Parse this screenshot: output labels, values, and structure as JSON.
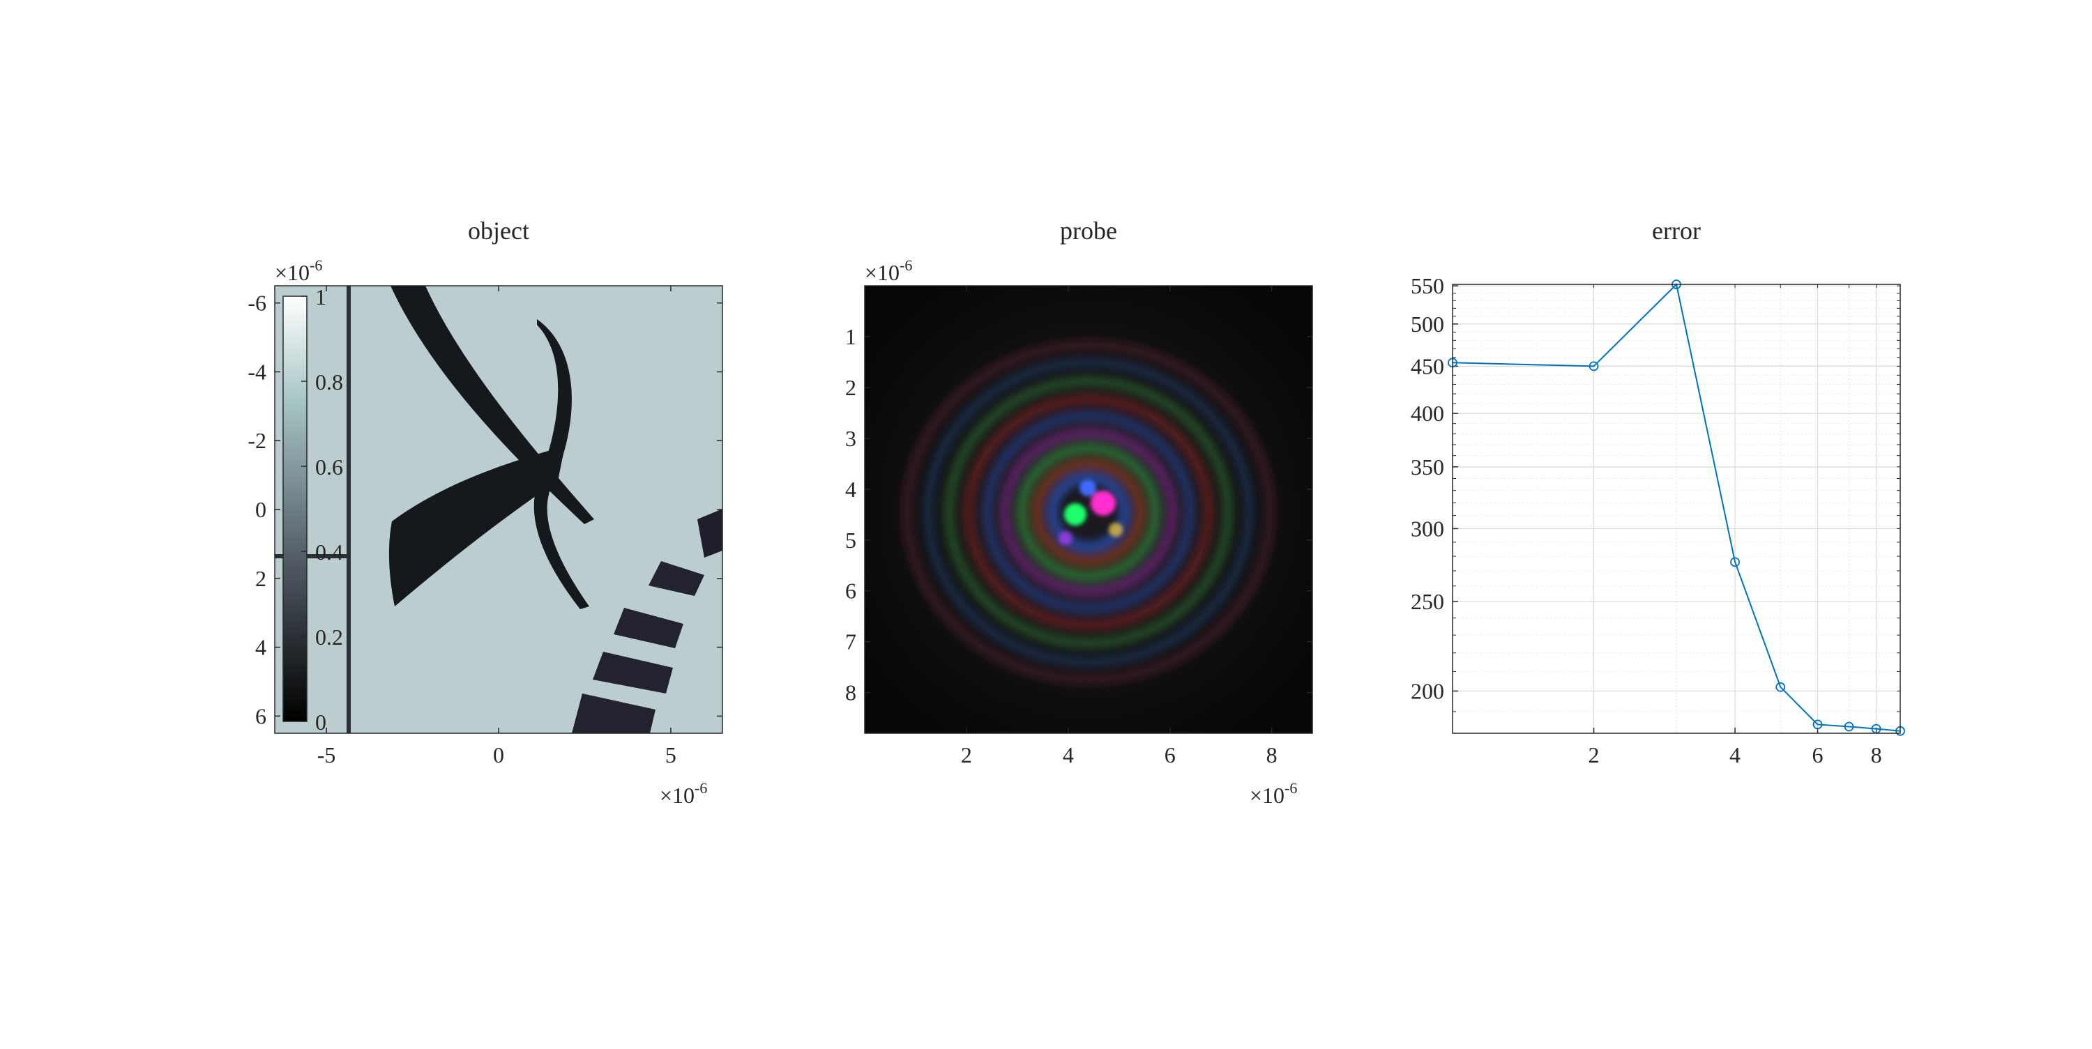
{
  "titles": {
    "object": "object",
    "probe": "probe",
    "error": "error"
  },
  "object_panel": {
    "exponent": {
      "prefix": "×10",
      "power": "-6"
    },
    "x_ticks": [
      "-5",
      "0",
      "5"
    ],
    "y_ticks": [
      "-6",
      "-4",
      "-2",
      "0",
      "2",
      "4",
      "6"
    ],
    "x_tick_values": [
      -5,
      0,
      5
    ],
    "y_tick_values": [
      -6,
      -4,
      -2,
      0,
      2,
      4,
      6
    ],
    "x_range": [
      -6.5,
      6.5
    ],
    "y_range": [
      -6.5,
      6.5
    ],
    "y_reversed": true,
    "colormap": "bone",
    "colorbar": {
      "ticks": [
        "0",
        "0.2",
        "0.4",
        "0.6",
        "0.8",
        "1"
      ],
      "tick_values": [
        0,
        0.2,
        0.4,
        0.6,
        0.8,
        1
      ],
      "range": [
        0,
        1
      ],
      "placement": "inside-left",
      "colors": {
        "bottom": "#000000",
        "top": "#ffffff"
      }
    },
    "colors": {
      "background": "#bccdcf",
      "features": "#15181c"
    }
  },
  "probe_panel": {
    "exponent": {
      "prefix": "×10",
      "power": "-6"
    },
    "x_ticks": [
      "2",
      "4",
      "6",
      "8"
    ],
    "y_ticks": [
      "1",
      "2",
      "3",
      "4",
      "5",
      "6",
      "7",
      "8"
    ],
    "x_tick_values": [
      2,
      4,
      6,
      8
    ],
    "y_tick_values": [
      1,
      2,
      3,
      4,
      5,
      6,
      7,
      8
    ],
    "x_range": [
      0,
      8.8
    ],
    "y_range": [
      0,
      8.8
    ],
    "y_reversed": true,
    "colors": {
      "background": "#0b0b0b",
      "rings": [
        "#2e7a3a",
        "#7a2626",
        "#2b3e86",
        "#6f2a7a",
        "#7a6a2a",
        "#2a6f72"
      ],
      "center": [
        "#ff2fd0",
        "#1aff6a",
        "#3f6bff"
      ]
    }
  },
  "chart_data": {
    "type": "line",
    "title": "error",
    "xscale": "log",
    "yscale": "log",
    "grid": true,
    "minor_grid": true,
    "x_ticks": [
      "2",
      "4",
      "6",
      "8"
    ],
    "x_tick_values": [
      2,
      4,
      6,
      8
    ],
    "y_ticks": [
      "200",
      "250",
      "300",
      "350",
      "400",
      "450",
      "500",
      "550"
    ],
    "y_tick_values": [
      200,
      250,
      300,
      350,
      400,
      450,
      500,
      550
    ],
    "xlim": [
      1,
      9
    ],
    "ylim": [
      180,
      552
    ],
    "marker": "circle",
    "color": "#0072bd",
    "series": [
      {
        "x": [
          1,
          2,
          3,
          4,
          5,
          6,
          7,
          8,
          9
        ],
        "y": [
          454,
          450,
          552,
          276,
          202,
          184,
          183,
          182,
          181
        ]
      }
    ]
  }
}
